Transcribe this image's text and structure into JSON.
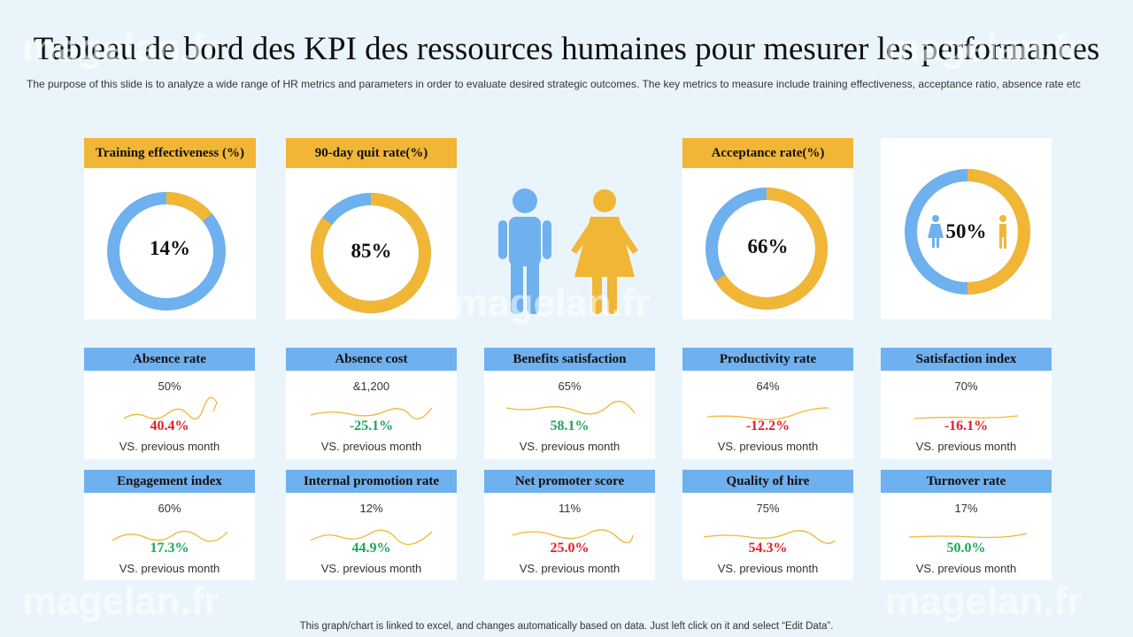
{
  "page": {
    "title": "Tableau de bord des KPI des ressources humaines pour mesurer les performances",
    "subtitle": "The purpose of this slide is to analyze a wide range of HR metrics and parameters in order to evaluate desired strategic outcomes. The key metrics to measure include training effectiveness, acceptance ratio, absence rate etc",
    "footer": "This graph/chart is linked to excel, and changes automatically based on data. Just left click on it and select “Edit Data”.",
    "watermark": "magelan.fr"
  },
  "colors": {
    "blue": "#6fb0ee",
    "orange": "#f1b635",
    "red": "#e0202a",
    "green": "#1fa55a"
  },
  "donuts": [
    {
      "label": "Training effectiveness (%)",
      "value_text": "14%",
      "percent": 14
    },
    {
      "label": "90-day quit rate(%)",
      "value_text": "85%",
      "percent": 85
    },
    {
      "label": "Acceptance rate(%)",
      "value_text": "66%",
      "percent": 66
    },
    {
      "label": "",
      "value_text": "50%",
      "percent": 50
    }
  ],
  "people_icons": [
    "male-icon",
    "female-icon"
  ],
  "kpis": [
    {
      "label": "Absence rate",
      "value": "50%",
      "change": "40.4%",
      "direction": "red",
      "vs": "VS. previous month"
    },
    {
      "label": "Absence cost",
      "value": "&1,200",
      "change": "-25.1%",
      "direction": "green",
      "vs": "VS. previous month"
    },
    {
      "label": "Benefits satisfaction",
      "value": "65%",
      "change": "58.1%",
      "direction": "green",
      "vs": "VS. previous month"
    },
    {
      "label": "Productivity rate",
      "value": "64%",
      "change": "-12.2%",
      "direction": "red",
      "vs": "VS. previous month"
    },
    {
      "label": "Satisfaction index",
      "value": "70%",
      "change": "-16.1%",
      "direction": "red",
      "vs": "VS. previous month"
    },
    {
      "label": "Engagement index",
      "value": "60%",
      "change": "17.3%",
      "direction": "green",
      "vs": "VS. previous month"
    },
    {
      "label": "Internal promotion rate",
      "value": "12%",
      "change": "44.9%",
      "direction": "green",
      "vs": "VS. previous month"
    },
    {
      "label": "Net promoter score",
      "value": "11%",
      "change": "25.0%",
      "direction": "red",
      "vs": "VS. previous month"
    },
    {
      "label": "Quality of hire",
      "value": "75%",
      "change": "54.3%",
      "direction": "red",
      "vs": "VS. previous month"
    },
    {
      "label": "Turnover rate",
      "value": "17%",
      "change": "50.0%",
      "direction": "green",
      "vs": "VS. previous month"
    }
  ]
}
